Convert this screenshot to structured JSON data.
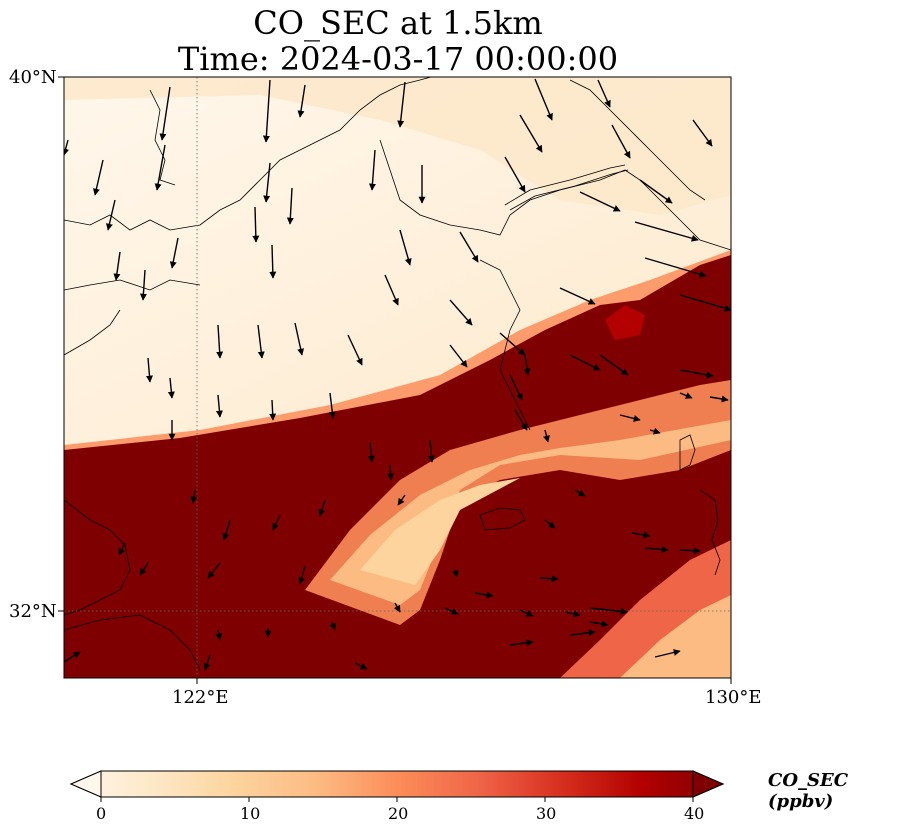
{
  "title": {
    "line1": "CO_SEC at 1.5km",
    "line2": "Time: 2024-03-17 00:00:00"
  },
  "map": {
    "lat_labels": [
      "40°N",
      "32°N"
    ],
    "lon_labels": [
      "122°E",
      "130°E"
    ],
    "extent": {
      "lon": [
        120,
        130
      ],
      "lat": [
        31,
        40
      ]
    },
    "gridlines": "dotted",
    "coastlines": true,
    "wind_vectors": true
  },
  "colorbar": {
    "label": "CO_SEC (ppbv)",
    "ticks": [
      "0",
      "10",
      "20",
      "30",
      "40"
    ],
    "range": [
      0,
      40
    ],
    "colormap": "OrRd",
    "extend": "both"
  },
  "colors": {
    "low": "#fff7ec",
    "mid": "#fdbb84",
    "high": "#7f0000"
  }
}
